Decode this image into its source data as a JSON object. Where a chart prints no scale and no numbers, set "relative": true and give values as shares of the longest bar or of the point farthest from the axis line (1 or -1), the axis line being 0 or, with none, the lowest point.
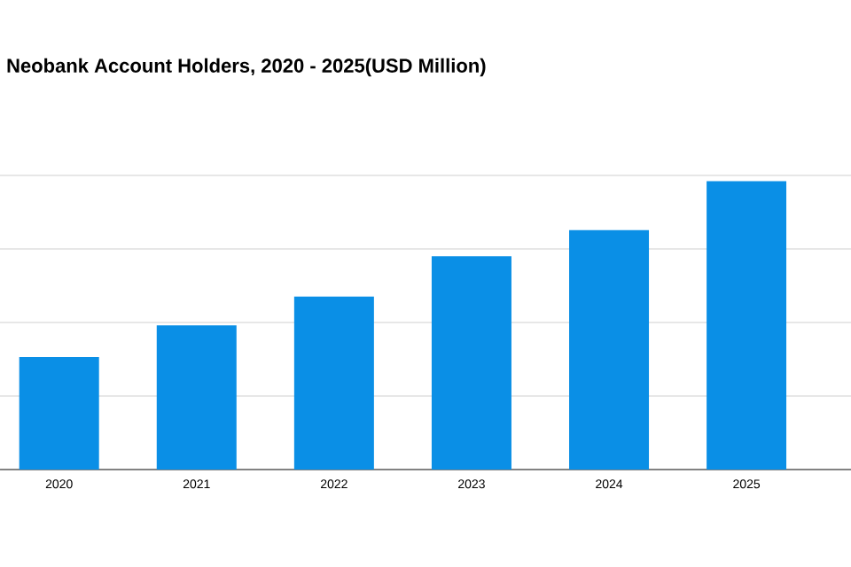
{
  "chart_data": {
    "type": "bar",
    "title": "Neobank Account Holders, 2020 - 2025(USD Million)",
    "categories": [
      "2020",
      "2021",
      "2022",
      "2023",
      "2024",
      "2025"
    ],
    "values": [
      0.39,
      0.5,
      0.6,
      0.74,
      0.83,
      1
    ],
    "color": "#0a8fe6",
    "relative": true,
    "grid": "y"
  }
}
